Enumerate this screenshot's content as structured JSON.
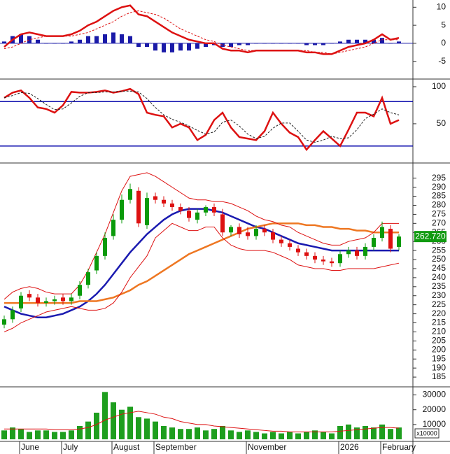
{
  "chart_data": [
    {
      "type": "macd",
      "ylim": [
        -9.7,
        12
      ],
      "yticks": [
        -5,
        0,
        5,
        10
      ],
      "series": [
        {
          "color": "#dd1111",
          "width": 2.5,
          "style": "solid",
          "values": [
            -1,
            1,
            2.5,
            3,
            2.5,
            2,
            2,
            2,
            2.5,
            3.5,
            5,
            6,
            7.5,
            9,
            10,
            10.5,
            8,
            7.5,
            6,
            4.5,
            3,
            2,
            1,
            0.5,
            0,
            0,
            -1.5,
            -2,
            -2,
            -2.5,
            -2,
            -2,
            -2,
            -2,
            -2,
            -2,
            -2.5,
            -2.5,
            -3,
            -3,
            -2,
            -1,
            -0.5,
            0,
            1,
            2.5,
            1,
            1.5
          ]
        },
        {
          "color": "#dd1111",
          "width": 1,
          "style": "dashed",
          "values": [
            -1.5,
            -1,
            0,
            1,
            1.5,
            2,
            2,
            2,
            2,
            2.5,
            3,
            4,
            5,
            6,
            7.5,
            8.5,
            9,
            8.5,
            8,
            7,
            5.5,
            4,
            3,
            2,
            1,
            0.5,
            -0.5,
            -1,
            -1.5,
            -2,
            -2,
            -2,
            -2,
            -2,
            -2,
            -2,
            -2,
            -2.5,
            -2.5,
            -3,
            -2.5,
            -2,
            -1.5,
            -1,
            0,
            1,
            1,
            1
          ]
        }
      ],
      "histogram": {
        "color": "#1a1aa8",
        "values": [
          0.5,
          2,
          2.5,
          2,
          1,
          0,
          0,
          0,
          0.5,
          1,
          2,
          2,
          2.5,
          3,
          2.5,
          2,
          -1,
          -1,
          -2,
          -2.5,
          -2.5,
          -2,
          -2,
          -1.5,
          -1,
          -0.5,
          -1,
          -1,
          -0.5,
          -0.5,
          0,
          0,
          0,
          0,
          0,
          0,
          -0.5,
          -0.5,
          -0.5,
          0,
          0.5,
          1,
          1,
          1,
          1,
          1.5,
          0,
          0.5
        ]
      }
    },
    {
      "type": "stochastic",
      "ylim": [
        -2,
        109.4
      ],
      "yticks": [
        50,
        100
      ],
      "levels": [
        80,
        20
      ],
      "level_color": "#0000aa",
      "series": [
        {
          "color": "#dd1111",
          "width": 2.5,
          "style": "solid",
          "values": [
            85,
            92,
            95,
            85,
            72,
            70,
            65,
            75,
            93,
            92,
            92,
            93,
            95,
            92,
            94,
            97,
            90,
            65,
            62,
            60,
            45,
            50,
            45,
            28,
            35,
            55,
            65,
            45,
            32,
            30,
            28,
            40,
            65,
            50,
            38,
            32,
            15,
            28,
            40,
            30,
            20,
            42,
            65,
            65,
            60,
            85,
            50,
            55
          ]
        },
        {
          "color": "#222222",
          "width": 1,
          "style": "dashed",
          "values": [
            85,
            88,
            92,
            91,
            84,
            76,
            69,
            70,
            78,
            87,
            92,
            92,
            93,
            93,
            94,
            94,
            93,
            84,
            72,
            62,
            56,
            52,
            47,
            41,
            36,
            39,
            52,
            55,
            47,
            36,
            30,
            33,
            44,
            51,
            51,
            40,
            28,
            25,
            28,
            33,
            30,
            31,
            42,
            57,
            63,
            70,
            65,
            62
          ]
        }
      ]
    },
    {
      "type": "candlestick",
      "ylim": [
        180,
        303
      ],
      "yticks": [
        185,
        190,
        195,
        200,
        205,
        210,
        215,
        220,
        225,
        230,
        235,
        240,
        245,
        250,
        255,
        260,
        265,
        270,
        275,
        280,
        285,
        290,
        295
      ],
      "up_color": "#0a9a0a",
      "down_color": "#dd1111",
      "open": [
        214,
        217,
        223,
        231,
        229,
        226,
        227,
        229,
        227,
        230,
        236,
        244,
        252,
        263,
        272,
        283,
        288,
        269,
        285,
        283,
        281,
        279,
        277,
        272,
        276,
        279,
        275,
        265,
        268,
        265,
        263,
        267,
        265,
        261,
        259,
        256,
        254,
        252,
        250,
        249,
        248,
        253,
        255,
        252,
        257,
        262,
        267,
        257
      ],
      "high": [
        219,
        224,
        232,
        233,
        231,
        229,
        230,
        231,
        231,
        238,
        245,
        254,
        265,
        275,
        286,
        292,
        290,
        287,
        287,
        285,
        283,
        281,
        279,
        278,
        280,
        281,
        278,
        269,
        270,
        268,
        269,
        269,
        267,
        263,
        261,
        258,
        256,
        254,
        252,
        251,
        255,
        257,
        257,
        259,
        264,
        271,
        269,
        264
      ],
      "low": [
        212,
        215,
        221,
        227,
        224,
        224,
        225,
        225,
        225,
        228,
        234,
        242,
        250,
        261,
        270,
        281,
        268,
        267,
        281,
        279,
        277,
        275,
        271,
        270,
        274,
        274,
        263,
        263,
        262,
        261,
        261,
        263,
        259,
        257,
        255,
        252,
        250,
        248,
        247,
        246,
        246,
        251,
        250,
        250,
        255,
        260,
        254,
        255
      ],
      "close": [
        217,
        222,
        230,
        229,
        226,
        227,
        228,
        227,
        229,
        236,
        243,
        252,
        262,
        272,
        283,
        289,
        270,
        284,
        283,
        281,
        279,
        277,
        273,
        276,
        279,
        276,
        265,
        268,
        264,
        263,
        267,
        265,
        261,
        259,
        257,
        254,
        252,
        250,
        249,
        248,
        253,
        255,
        252,
        257,
        262,
        268,
        256,
        262.72
      ],
      "series": [
        {
          "color": "#1a1ab0",
          "width": 2.5,
          "values": [
            224,
            222,
            220,
            219,
            218,
            218,
            219,
            220,
            222,
            224,
            227,
            231,
            236,
            242,
            248,
            254,
            259,
            264,
            268,
            272,
            275,
            277,
            278,
            278,
            278,
            277,
            276,
            274,
            272,
            270,
            268,
            267,
            265,
            263,
            261,
            259,
            258,
            257,
            256,
            255,
            255,
            255,
            255,
            255,
            255,
            255,
            255,
            255
          ]
        },
        {
          "color": "#ee7722",
          "width": 2.5,
          "values": [
            226,
            226,
            226,
            226,
            226,
            226,
            226,
            226,
            226,
            227,
            227,
            227,
            228,
            229,
            231,
            233,
            236,
            238,
            241,
            244,
            247,
            250,
            253,
            255,
            257,
            259,
            261,
            263,
            265,
            267,
            268,
            269,
            270,
            270,
            270,
            270,
            269,
            269,
            268,
            268,
            267,
            267,
            266,
            266,
            265,
            265,
            265,
            265
          ]
        },
        {
          "color": "#dd1111",
          "width": 1,
          "values": [
            228,
            232,
            234,
            235,
            234,
            232,
            231,
            231,
            231,
            236,
            244,
            254,
            264,
            276,
            288,
            296,
            297,
            298,
            296,
            293,
            290,
            287,
            284,
            283,
            283,
            282,
            282,
            281,
            279,
            277,
            274,
            272,
            271,
            269,
            268,
            265,
            263,
            261,
            259,
            258,
            258,
            260,
            261,
            262,
            265,
            270,
            270,
            270
          ]
        },
        {
          "color": "#dd1111",
          "width": 1,
          "values": [
            210,
            212,
            215,
            217,
            219,
            221,
            222,
            223,
            224,
            223,
            222,
            222,
            223,
            226,
            232,
            240,
            246,
            252,
            262,
            266,
            270,
            268,
            266,
            266,
            268,
            268,
            262,
            258,
            256,
            255,
            255,
            255,
            254,
            252,
            250,
            247,
            246,
            245,
            245,
            244,
            244,
            245,
            245,
            245,
            245,
            246,
            247,
            248
          ]
        }
      ],
      "last_price": {
        "value": 262.72,
        "label": "262.720",
        "color": "#109a10"
      }
    },
    {
      "type": "bar",
      "ylim": [
        0,
        35000
      ],
      "yticks": [
        10000,
        20000,
        30000
      ],
      "unit_label": "x10000",
      "color": "#1e9e1e",
      "categories": [
        null,
        null,
        "June",
        null,
        null,
        null,
        null,
        "July",
        null,
        null,
        null,
        null,
        null,
        "August",
        null,
        null,
        null,
        null,
        "September",
        null,
        null,
        null,
        null,
        null,
        null,
        null,
        null,
        null,
        null,
        "November",
        null,
        null,
        null,
        null,
        null,
        null,
        null,
        null,
        null,
        null,
        "2026",
        null,
        null,
        null,
        null,
        "February",
        null,
        null
      ],
      "values": [
        6000,
        8000,
        7000,
        5000,
        6000,
        6000,
        5000,
        5000,
        6000,
        9000,
        12000,
        18000,
        32000,
        25000,
        20000,
        22000,
        15000,
        14000,
        12000,
        9000,
        8000,
        7000,
        7000,
        8000,
        6000,
        7000,
        9000,
        6000,
        5000,
        6000,
        5000,
        4000,
        5000,
        4000,
        5000,
        4000,
        5000,
        6000,
        5000,
        4000,
        9000,
        10000,
        8000,
        9000,
        8000,
        10000,
        7000,
        8000
      ],
      "series": [
        {
          "color": "#dd1111",
          "width": 1,
          "values": [
            7000,
            7000,
            7000,
            7000,
            7000,
            7000,
            6500,
            6500,
            6500,
            7000,
            8000,
            10000,
            13000,
            15000,
            17000,
            18000,
            19000,
            18000,
            17000,
            15000,
            14000,
            12000,
            11000,
            10000,
            10000,
            9000,
            8500,
            8000,
            7500,
            7000,
            6500,
            6000,
            5500,
            5500,
            5000,
            5000,
            5000,
            5000,
            5000,
            5000,
            5500,
            6000,
            6500,
            7000,
            7500,
            8000,
            8000,
            7500
          ]
        }
      ]
    }
  ]
}
